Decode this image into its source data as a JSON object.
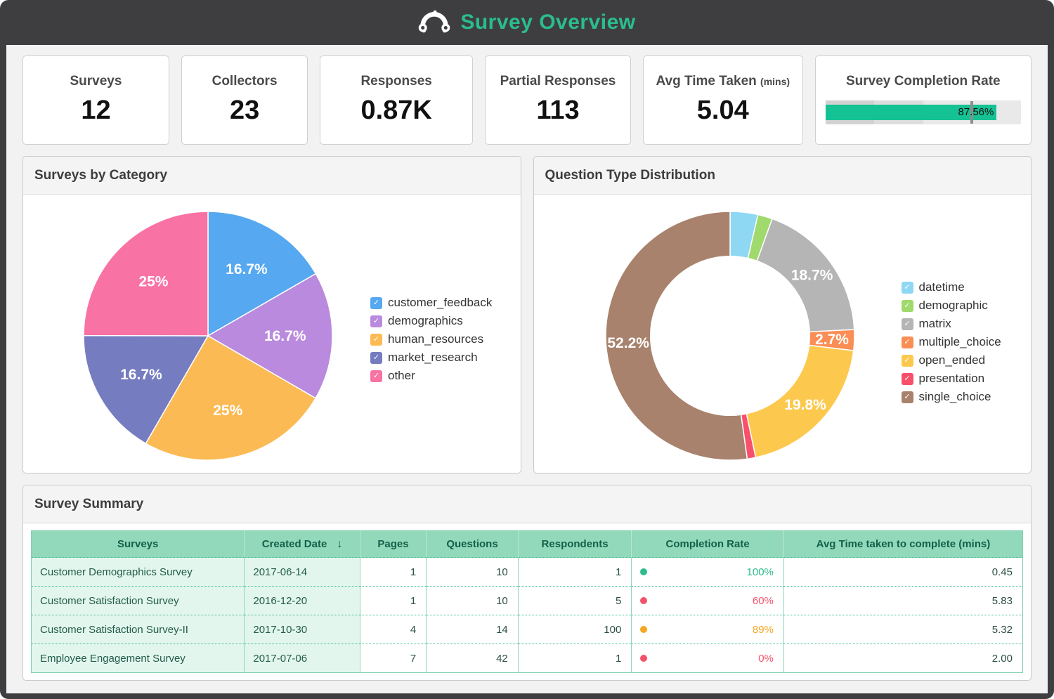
{
  "titlebar": {
    "title": "Survey Overview",
    "title_color": "#2abd8e"
  },
  "kpis": [
    {
      "label": "Surveys",
      "value": "12"
    },
    {
      "label": "Collectors",
      "value": "23"
    },
    {
      "label": "Responses",
      "value": "0.87K"
    },
    {
      "label": "Partial Responses",
      "value": "113"
    },
    {
      "label": "Avg Time Taken",
      "label_suffix": "(mins)",
      "value": "5.04"
    }
  ],
  "completion_rate": {
    "label": "Survey Completion Rate",
    "display": "87.56%",
    "value_pct": 87.56,
    "target_pct": 75,
    "bar_color": "#15c293",
    "marker_color": "#8d8d8d",
    "bands": [
      {
        "to": 25,
        "color": "#d2d2d2"
      },
      {
        "to": 50,
        "color": "#dddddd"
      },
      {
        "to": 100,
        "color": "#e9e9e9"
      }
    ]
  },
  "chart_data": [
    {
      "type": "pie",
      "title": "Surveys by Category",
      "labels": [
        "customer_feedback",
        "demographics",
        "human_resources",
        "market_research",
        "other"
      ],
      "values": [
        16.7,
        16.7,
        25,
        16.7,
        25
      ],
      "display_labels": [
        "16.7%",
        "16.7%",
        "25%",
        "16.7%",
        "25%"
      ],
      "colors": [
        "#56a8f0",
        "#b98ade",
        "#fcba54",
        "#767cc0",
        "#f872a4"
      ],
      "legend_position": "right",
      "start_angle": "12-oclock",
      "direction": "clockwise"
    },
    {
      "type": "donut",
      "title": "Question Type Distribution",
      "labels": [
        "datetime",
        "demographic",
        "matrix",
        "multiple_choice",
        "open_ended",
        "presentation",
        "single_choice"
      ],
      "values": [
        3.6,
        1.9,
        18.7,
        2.7,
        19.8,
        1.1,
        52.2
      ],
      "display_labels": [
        "",
        "",
        "18.7%",
        "2.7%",
        "19.8%",
        "",
        "52.2%"
      ],
      "colors": [
        "#8ed8f3",
        "#a0d96c",
        "#b5b5b5",
        "#fa8e55",
        "#fcc94e",
        "#f8506b",
        "#a8826c"
      ],
      "legend_position": "right",
      "inner_radius_ratio": 0.64,
      "start_angle": "12-oclock",
      "direction": "clockwise"
    }
  ],
  "table": {
    "title": "Survey Summary",
    "columns": [
      {
        "label": "Surveys",
        "type": "label"
      },
      {
        "label": "Created Date",
        "type": "label",
        "sort": "desc",
        "sort_glyph": "↓"
      },
      {
        "label": "Pages",
        "type": "num"
      },
      {
        "label": "Questions",
        "type": "num"
      },
      {
        "label": "Respondents",
        "type": "num"
      },
      {
        "label": "Completion Rate",
        "type": "rate"
      },
      {
        "label": "Avg Time taken to complete (mins)",
        "type": "num"
      }
    ],
    "rows": [
      {
        "survey": "Customer Demographics Survey",
        "created": "2017-06-14",
        "pages": "1",
        "questions": "10",
        "respondents": "1",
        "rate": "100%",
        "rate_color": "#2ebd8a",
        "avg_time": "0.45"
      },
      {
        "survey": "Customer Satisfaction Survey",
        "created": "2016-12-20",
        "pages": "1",
        "questions": "10",
        "respondents": "5",
        "rate": "60%",
        "rate_color": "#f4526a",
        "avg_time": "5.83"
      },
      {
        "survey": "Customer Satisfaction Survey-II",
        "created": "2017-10-30",
        "pages": "4",
        "questions": "14",
        "respondents": "100",
        "rate": "89%",
        "rate_color": "#f5a623",
        "avg_time": "5.32"
      },
      {
        "survey": "Employee Engagement Survey",
        "created": "2017-07-06",
        "pages": "7",
        "questions": "42",
        "respondents": "1",
        "rate": "0%",
        "rate_color": "#f4526a",
        "avg_time": "2.00"
      }
    ]
  }
}
